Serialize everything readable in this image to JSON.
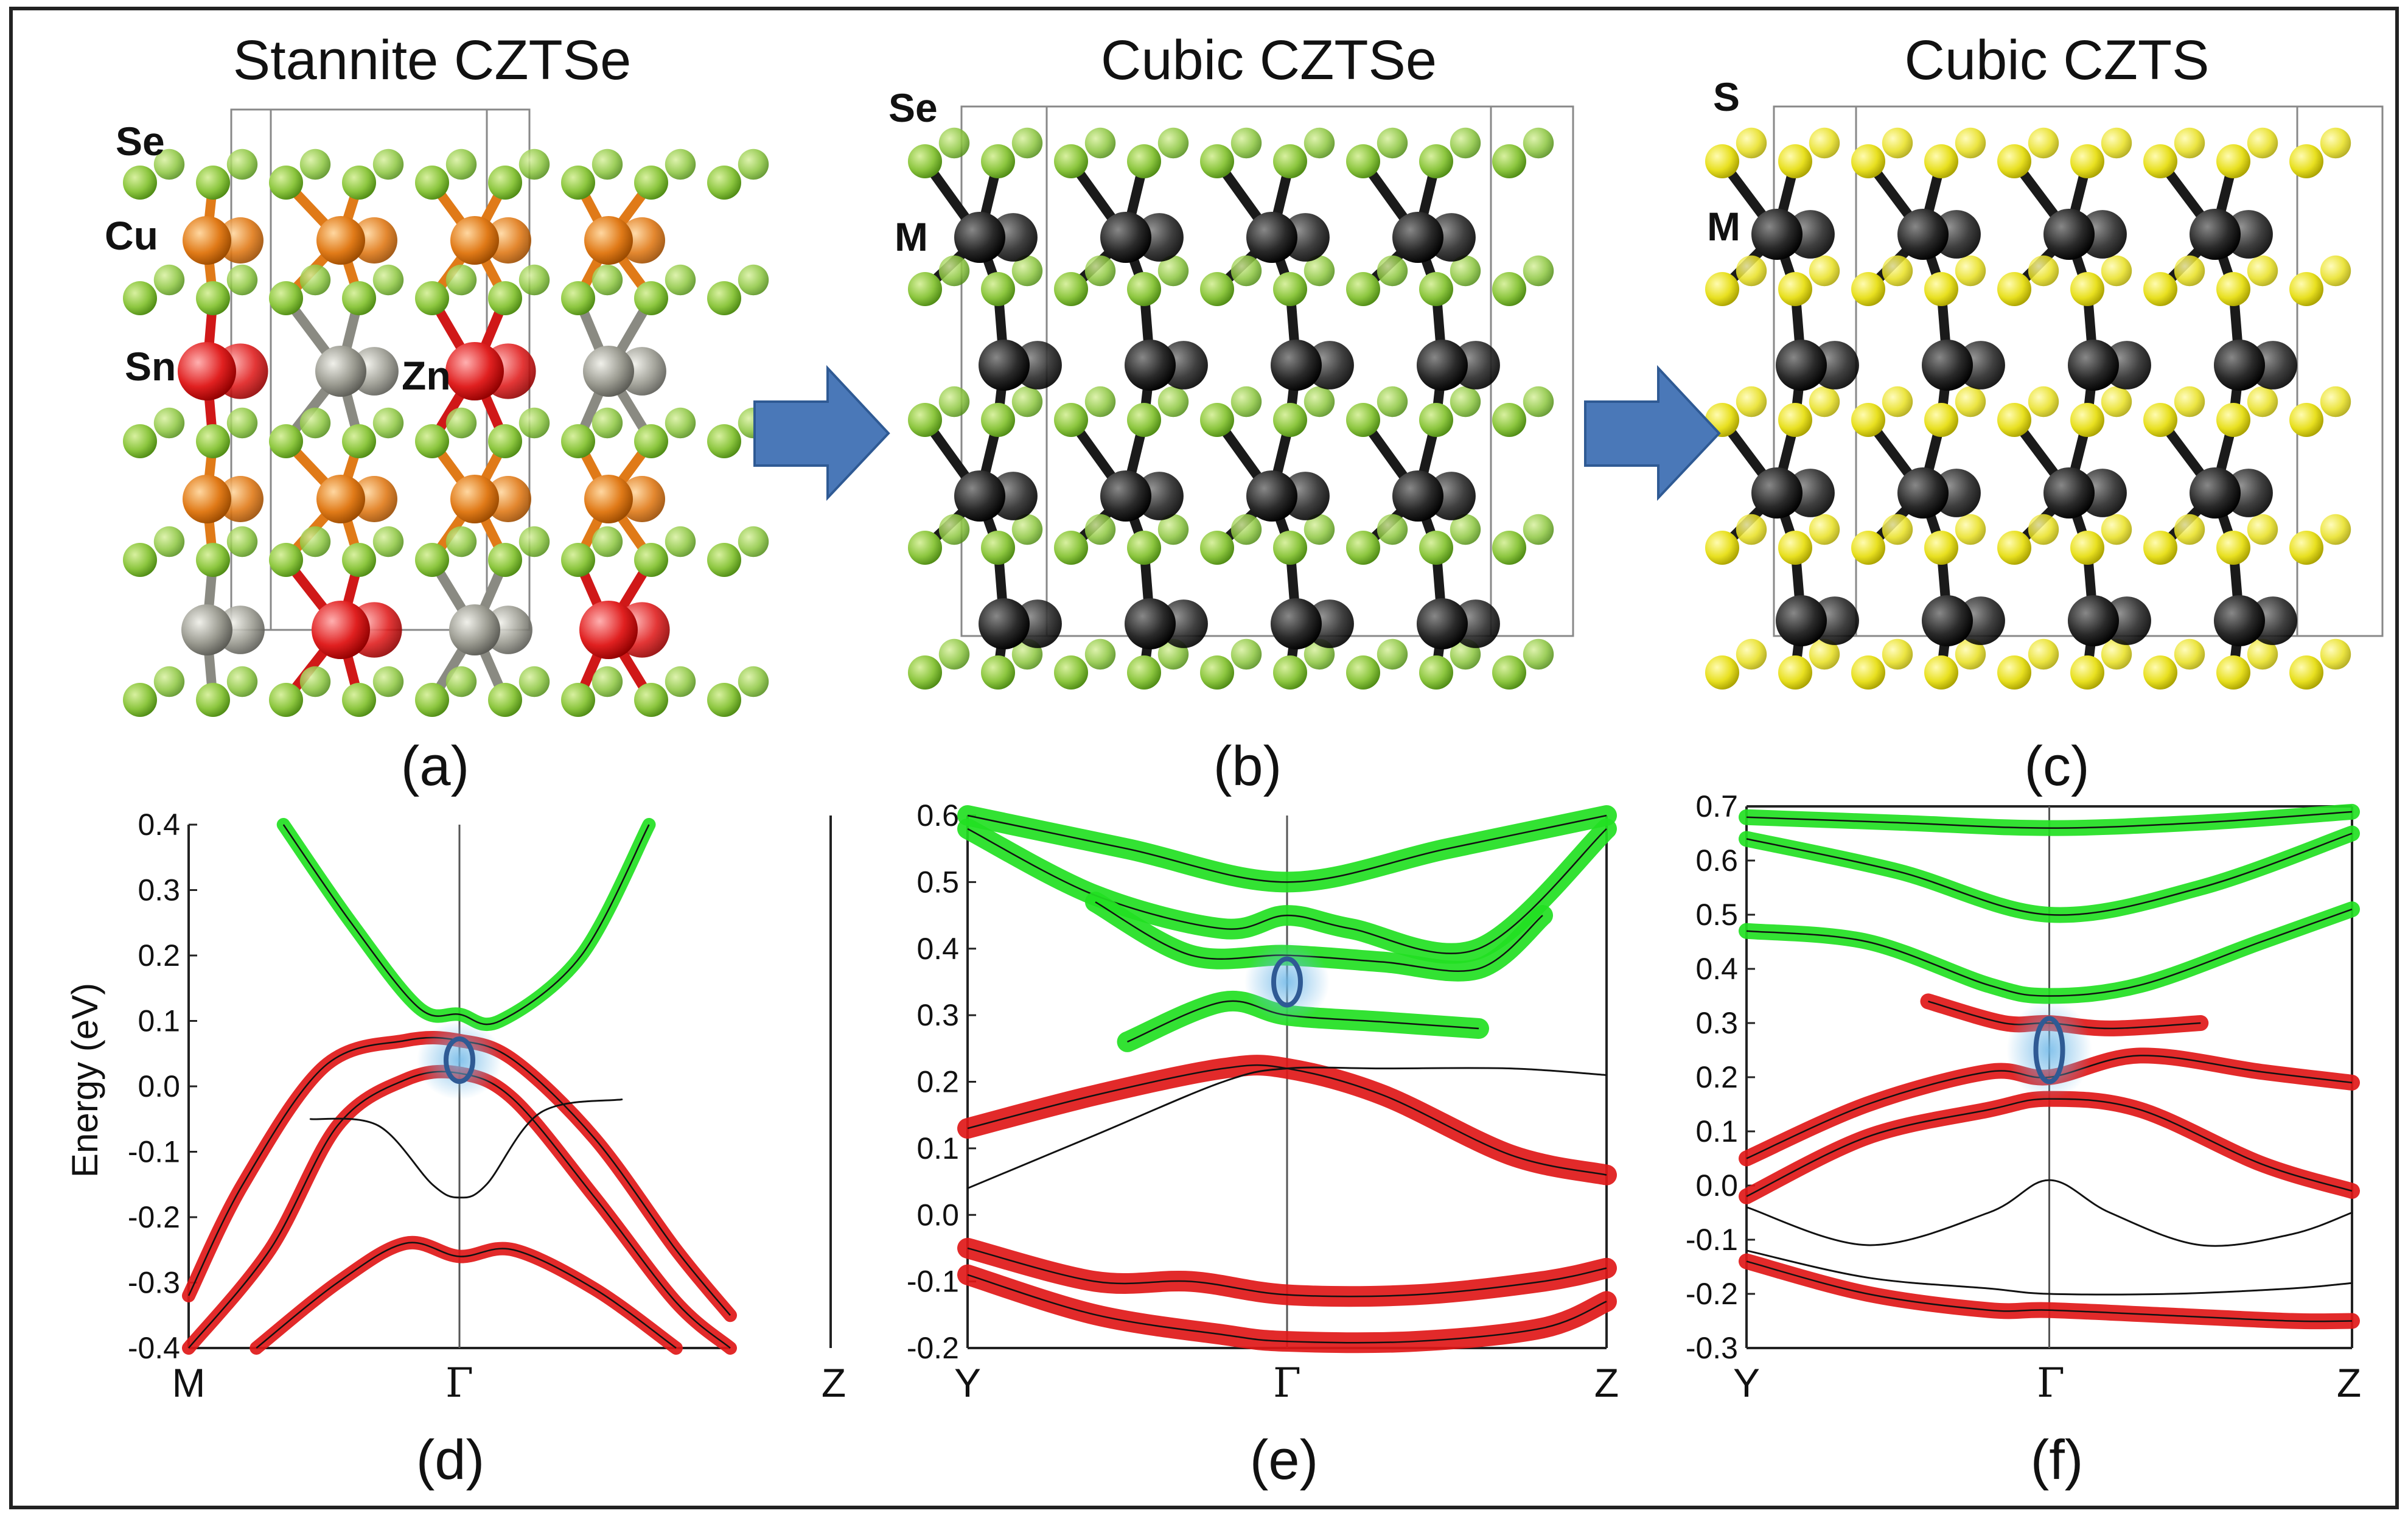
{
  "structures": {
    "a": {
      "title": "Stannite CZTSe",
      "caption": "(a)",
      "labels": {
        "se": "Se",
        "cu": "Cu",
        "sn": "Sn",
        "zn": "Zn"
      }
    },
    "b": {
      "title": "Cubic CZTSe",
      "caption": "(b)",
      "labels": {
        "se": "Se",
        "m": "M"
      }
    },
    "c": {
      "title": "Cubic CZTS",
      "caption": "(c)",
      "labels": {
        "s": "S",
        "m": "M"
      }
    }
  },
  "colors": {
    "green_band": "#22e022",
    "red_band": "#e01818",
    "se_atom": "#8cc63f",
    "s_atom": "#e8e020",
    "cu_atom": "#e07a18",
    "sn_atom": "#e02020",
    "zn_atom": "#9a9a90",
    "m_atom": "#1a1a1a",
    "arrow": "#4a78b8",
    "highlight": "#6fb8e8"
  },
  "chart_data": [
    {
      "type": "line",
      "panel": "(d)",
      "ylabel": "Energy (eV)",
      "ylim": [
        -0.4,
        0.4
      ],
      "yticks": [
        "0.4",
        "0.3",
        "0.2",
        "0.1",
        "0.0",
        "-0.1",
        "-0.2",
        "-0.3",
        "-0.4"
      ],
      "kpoints": [
        "M",
        "Γ",
        "Z"
      ],
      "highlight_at": {
        "k": "Γ",
        "energy": 0.04
      },
      "series": [
        {
          "name": "conduction band (green)",
          "x": [
            0.35,
            0.6,
            0.85,
            1.0,
            1.15,
            1.45,
            1.7
          ],
          "y": [
            0.4,
            0.25,
            0.12,
            0.11,
            0.1,
            0.2,
            0.4
          ]
        },
        {
          "name": "upper valence band (red)",
          "x": [
            0.0,
            0.2,
            0.5,
            0.8,
            1.0,
            1.2,
            1.5,
            1.8,
            2.0
          ],
          "y": [
            -0.32,
            -0.15,
            0.03,
            0.07,
            0.07,
            0.04,
            -0.08,
            -0.25,
            -0.35
          ]
        },
        {
          "name": "valence band 2 (red)",
          "x": [
            0.0,
            0.3,
            0.55,
            0.8,
            1.0,
            1.2,
            1.5,
            1.8,
            2.0
          ],
          "y": [
            -0.4,
            -0.25,
            -0.06,
            0.01,
            0.02,
            -0.02,
            -0.17,
            -0.33,
            -0.4
          ]
        },
        {
          "name": "band 3 (black)",
          "x": [
            0.45,
            0.7,
            0.9,
            1.0,
            1.1,
            1.3,
            1.6
          ],
          "y": [
            -0.05,
            -0.06,
            -0.15,
            -0.17,
            -0.15,
            -0.04,
            -0.02
          ]
        },
        {
          "name": "deep valence band (red)",
          "x": [
            0.25,
            0.55,
            0.8,
            1.0,
            1.2,
            1.5,
            1.8
          ],
          "y": [
            -0.4,
            -0.3,
            -0.24,
            -0.26,
            -0.25,
            -0.31,
            -0.4
          ]
        }
      ]
    },
    {
      "type": "line",
      "panel": "(e)",
      "ylim": [
        -0.2,
        0.6
      ],
      "yticks": [
        "0.6",
        "0.5",
        "0.4",
        "0.3",
        "0.2",
        "0.1",
        "0.0",
        "-0.1",
        "-0.2"
      ],
      "kpoints": [
        "Y",
        "Γ",
        "Z"
      ],
      "highlight_at": {
        "k": "Γ",
        "energy": 0.35
      },
      "series": [
        {
          "name": "conduction band top (green)",
          "x": [
            0,
            0.5,
            1.0,
            1.5,
            2.0
          ],
          "y": [
            0.6,
            0.55,
            0.5,
            0.55,
            0.6
          ]
        },
        {
          "name": "conduction band (green)",
          "x": [
            0,
            0.4,
            0.8,
            1.0,
            1.2,
            1.6,
            2.0
          ],
          "y": [
            0.58,
            0.48,
            0.43,
            0.45,
            0.43,
            0.4,
            0.58
          ]
        },
        {
          "name": "conduction band low (green)",
          "x": [
            0.4,
            0.7,
            1.0,
            1.3,
            1.6,
            1.8
          ],
          "y": [
            0.47,
            0.39,
            0.39,
            0.38,
            0.37,
            0.45
          ]
        },
        {
          "name": "mixed band (green)",
          "x": [
            0.5,
            0.8,
            1.0,
            1.3,
            1.6
          ],
          "y": [
            0.26,
            0.32,
            0.3,
            0.29,
            0.28
          ]
        },
        {
          "name": "valence band (red)",
          "x": [
            0,
            0.4,
            0.8,
            1.0,
            1.3,
            1.7,
            2.0
          ],
          "y": [
            0.13,
            0.18,
            0.22,
            0.22,
            0.18,
            0.09,
            0.06
          ]
        },
        {
          "name": "valence band 2 (black)",
          "x": [
            0,
            0.4,
            0.8,
            1.0,
            1.3,
            1.7,
            2.0
          ],
          "y": [
            0.04,
            0.12,
            0.2,
            0.22,
            0.22,
            0.22,
            0.21
          ]
        },
        {
          "name": "deep band (red)",
          "x": [
            0,
            0.4,
            0.7,
            1.0,
            1.4,
            1.8,
            2.0
          ],
          "y": [
            -0.05,
            -0.1,
            -0.1,
            -0.12,
            -0.12,
            -0.1,
            -0.08
          ]
        },
        {
          "name": "deepest band (red)",
          "x": [
            0,
            0.4,
            0.8,
            1.0,
            1.4,
            1.8,
            2.0
          ],
          "y": [
            -0.09,
            -0.15,
            -0.18,
            -0.19,
            -0.19,
            -0.17,
            -0.13
          ]
        }
      ]
    },
    {
      "type": "line",
      "panel": "(f)",
      "ylim": [
        -0.3,
        0.7
      ],
      "yticks": [
        "0.7",
        "0.6",
        "0.5",
        "0.4",
        "0.3",
        "0.2",
        "0.1",
        "0.0",
        "-0.1",
        "-0.2",
        "-0.3"
      ],
      "kpoints": [
        "Y",
        "Γ",
        "Z"
      ],
      "highlight_at": {
        "k": "Γ",
        "energy": 0.25
      },
      "series": [
        {
          "name": "top band (green)",
          "x": [
            0,
            0.5,
            1.0,
            1.5,
            2.0
          ],
          "y": [
            0.68,
            0.67,
            0.66,
            0.67,
            0.69
          ]
        },
        {
          "name": "upper band (green)",
          "x": [
            0,
            0.5,
            1.0,
            1.5,
            2.0
          ],
          "y": [
            0.64,
            0.58,
            0.5,
            0.55,
            0.65
          ]
        },
        {
          "name": "conduction band (green)",
          "x": [
            0,
            0.4,
            0.8,
            1.0,
            1.3,
            1.7,
            2.0
          ],
          "y": [
            0.47,
            0.45,
            0.37,
            0.35,
            0.37,
            0.45,
            0.51
          ]
        },
        {
          "name": "lower conduction (red)",
          "x": [
            0.6,
            0.85,
            1.0,
            1.2,
            1.5
          ],
          "y": [
            0.34,
            0.3,
            0.3,
            0.29,
            0.3
          ]
        },
        {
          "name": "valence band (red)",
          "x": [
            0,
            0.4,
            0.8,
            1.0,
            1.3,
            1.7,
            2.0
          ],
          "y": [
            0.05,
            0.15,
            0.21,
            0.2,
            0.24,
            0.21,
            0.19
          ]
        },
        {
          "name": "valence band 2 (red)",
          "x": [
            0,
            0.4,
            0.8,
            1.0,
            1.3,
            1.7,
            2.0
          ],
          "y": [
            -0.02,
            0.09,
            0.14,
            0.16,
            0.14,
            0.04,
            -0.01
          ]
        },
        {
          "name": "lower band (black)",
          "x": [
            0,
            0.4,
            0.8,
            1.0,
            1.2,
            1.5,
            1.8,
            2.0
          ],
          "y": [
            -0.04,
            -0.11,
            -0.05,
            0.01,
            -0.05,
            -0.11,
            -0.09,
            -0.05
          ]
        },
        {
          "name": "deep band (red)",
          "x": [
            0,
            0.4,
            0.8,
            1.0,
            1.4,
            1.8,
            2.0
          ],
          "y": [
            -0.14,
            -0.2,
            -0.23,
            -0.23,
            -0.24,
            -0.25,
            -0.25
          ]
        },
        {
          "name": "deep band 2 (black)",
          "x": [
            0,
            0.4,
            0.8,
            1.0,
            1.4,
            1.8,
            2.0
          ],
          "y": [
            -0.12,
            -0.17,
            -0.19,
            -0.2,
            -0.2,
            -0.19,
            -0.18
          ]
        }
      ]
    }
  ]
}
